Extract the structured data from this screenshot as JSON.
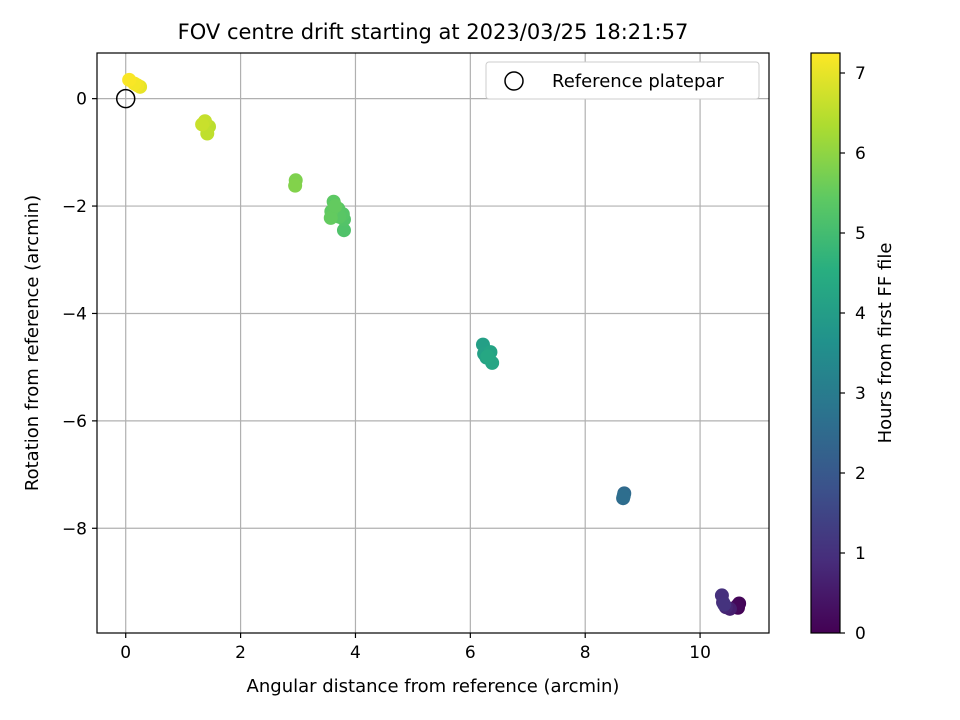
{
  "chart_data": {
    "type": "scatter",
    "title": "FOV centre drift starting at 2023/03/25 18:21:57",
    "xlabel": "Angular distance from reference (arcmin)",
    "ylabel": "Rotation from reference (arcmin)",
    "xlim": [
      -0.5,
      11.2
    ],
    "ylim": [
      -9.95,
      0.85
    ],
    "xticks": [
      0,
      2,
      4,
      6,
      8,
      10
    ],
    "yticks": [
      0,
      -2,
      -4,
      -6,
      -8
    ],
    "grid": true,
    "legend": {
      "position": "top-right",
      "entries": [
        "Reference platepar"
      ]
    },
    "reference_point": {
      "x": 0,
      "y": 0,
      "label": "Reference platepar"
    },
    "colorbar": {
      "label": "Hours from first FF file",
      "range": [
        0,
        7.25
      ],
      "ticks": [
        0,
        1,
        2,
        3,
        4,
        5,
        6,
        7
      ],
      "colormap": "viridis"
    },
    "points": [
      {
        "x": 10.66,
        "y": -9.48,
        "hours": 0.05
      },
      {
        "x": 10.68,
        "y": -9.4,
        "hours": 0.1
      },
      {
        "x": 10.64,
        "y": -9.45,
        "hours": 0.15
      },
      {
        "x": 10.52,
        "y": -9.5,
        "hours": 0.6
      },
      {
        "x": 10.45,
        "y": -9.47,
        "hours": 0.75
      },
      {
        "x": 10.4,
        "y": -9.38,
        "hours": 0.9
      },
      {
        "x": 10.38,
        "y": -9.25,
        "hours": 1.0
      },
      {
        "x": 10.42,
        "y": -9.42,
        "hours": 1.05
      },
      {
        "x": 8.68,
        "y": -7.35,
        "hours": 2.5
      },
      {
        "x": 8.66,
        "y": -7.44,
        "hours": 2.55
      },
      {
        "x": 8.67,
        "y": -7.4,
        "hours": 2.6
      },
      {
        "x": 6.22,
        "y": -4.58,
        "hours": 4.05
      },
      {
        "x": 6.24,
        "y": -4.75,
        "hours": 4.1
      },
      {
        "x": 6.28,
        "y": -4.82,
        "hours": 4.15
      },
      {
        "x": 6.35,
        "y": -4.72,
        "hours": 4.2
      },
      {
        "x": 6.38,
        "y": -4.92,
        "hours": 4.25
      },
      {
        "x": 6.3,
        "y": -4.8,
        "hours": 4.3
      },
      {
        "x": 3.8,
        "y": -2.45,
        "hours": 5.2
      },
      {
        "x": 3.8,
        "y": -2.25,
        "hours": 5.25
      },
      {
        "x": 3.78,
        "y": -2.15,
        "hours": 5.3
      },
      {
        "x": 3.7,
        "y": -2.05,
        "hours": 5.35
      },
      {
        "x": 3.72,
        "y": -2.2,
        "hours": 5.35
      },
      {
        "x": 3.62,
        "y": -1.92,
        "hours": 5.4
      },
      {
        "x": 3.58,
        "y": -2.1,
        "hours": 5.45
      },
      {
        "x": 3.57,
        "y": -2.22,
        "hours": 5.5
      },
      {
        "x": 3.65,
        "y": -2.0,
        "hours": 5.5
      },
      {
        "x": 2.96,
        "y": -1.52,
        "hours": 5.8
      },
      {
        "x": 2.95,
        "y": -1.62,
        "hours": 5.85
      },
      {
        "x": 1.45,
        "y": -0.52,
        "hours": 6.5
      },
      {
        "x": 1.42,
        "y": -0.65,
        "hours": 6.55
      },
      {
        "x": 1.38,
        "y": -0.42,
        "hours": 6.6
      },
      {
        "x": 1.33,
        "y": -0.48,
        "hours": 6.65
      },
      {
        "x": 0.25,
        "y": 0.22,
        "hours": 7.0
      },
      {
        "x": 0.2,
        "y": 0.25,
        "hours": 7.1
      },
      {
        "x": 0.15,
        "y": 0.28,
        "hours": 7.15
      },
      {
        "x": 0.06,
        "y": 0.35,
        "hours": 7.2
      }
    ]
  }
}
